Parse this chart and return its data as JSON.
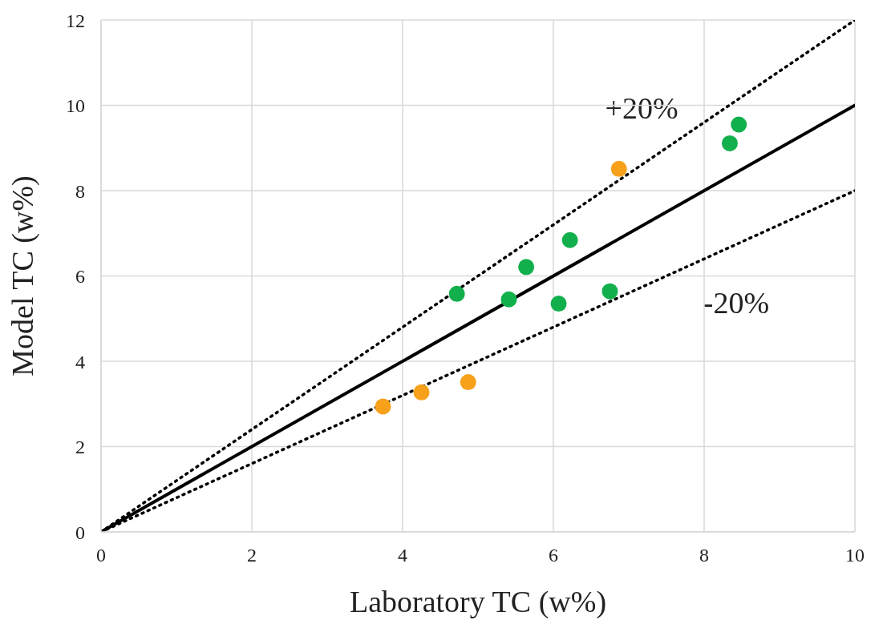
{
  "chart_data": {
    "type": "scatter",
    "xlabel": "Laboratory TC (w%)",
    "ylabel": "Model TC (w%)",
    "xlim": [
      0,
      10
    ],
    "xticks": [
      0,
      2,
      4,
      6,
      8,
      10
    ],
    "ylim": [
      0,
      12
    ],
    "yticks": [
      0,
      2,
      4,
      6,
      8,
      10,
      12
    ],
    "grid": true,
    "marker": "circle",
    "series": [
      {
        "color": "#12b04c",
        "x": [
          4.72,
          5.41,
          5.64,
          6.07,
          6.22,
          6.75,
          8.34,
          8.46
        ],
        "values": [
          5.58,
          5.45,
          6.21,
          5.35,
          6.84,
          5.64,
          9.11,
          9.55
        ]
      },
      {
        "color": "#f7a11a",
        "x": [
          6.87,
          3.74,
          4.25,
          4.87
        ],
        "values": [
          8.51,
          2.94,
          3.27,
          3.51
        ]
      },
      {
        "type": "line",
        "color": "#000000",
        "line_style": "solid",
        "marker": "none",
        "x": [
          0,
          10
        ],
        "values": [
          0,
          10
        ]
      },
      {
        "type": "line",
        "color": "#000000",
        "line_style": "dotted",
        "marker": "none",
        "x": [
          0,
          10
        ],
        "values": [
          0,
          12
        ]
      },
      {
        "type": "line",
        "color": "#000000",
        "line_style": "dotted",
        "marker": "none",
        "x": [
          0,
          10
        ],
        "values": [
          0,
          8
        ]
      }
    ],
    "annotations": [
      "+20%",
      "-20%"
    ]
  }
}
